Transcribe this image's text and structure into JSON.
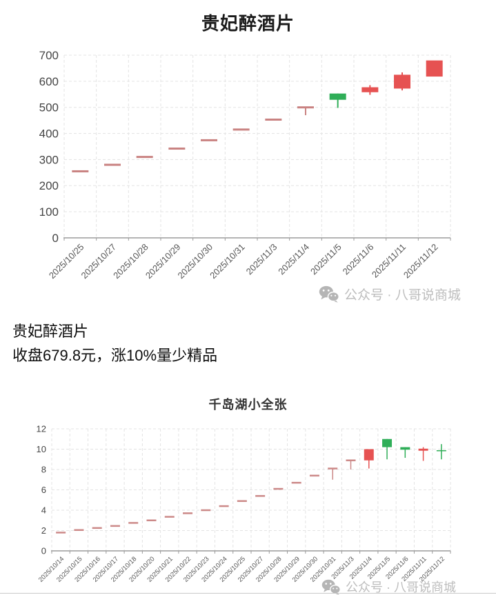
{
  "page": {
    "watermark_text": "公众号 · 八哥说商城"
  },
  "description": {
    "line1": "贵妃醉酒片",
    "line2": "收盘679.8元，涨10%量少精品"
  },
  "chart_data": [
    {
      "type": "candlestick",
      "title": "贵妃醉酒片",
      "categories": [
        "2025/10/25",
        "2025/10/27",
        "2025/10/28",
        "2025/10/29",
        "2025/10/30",
        "2025/10/31",
        "2025/11/3",
        "2025/11/4",
        "2025/11/5",
        "2025/11/6",
        "2025/11/11",
        "2025/11/12"
      ],
      "ohlc": [
        [
          255,
          255,
          255,
          255
        ],
        [
          280,
          280,
          280,
          280
        ],
        [
          310,
          310,
          310,
          310
        ],
        [
          342,
          342,
          342,
          342
        ],
        [
          374,
          374,
          374,
          374
        ],
        [
          415,
          415,
          415,
          415
        ],
        [
          453,
          453,
          453,
          453
        ],
        [
          500,
          500,
          470,
          500
        ],
        [
          553,
          553,
          498,
          529
        ],
        [
          558,
          585,
          548,
          577
        ],
        [
          572,
          634,
          565,
          625
        ],
        [
          618,
          679.8,
          618,
          679.8
        ]
      ],
      "ylim": [
        0,
        700
      ],
      "ytick_step": 100,
      "grid": true,
      "x_label_rotation": -45,
      "colors": {
        "up": "#e65252",
        "down": "#2fae58",
        "flat": "#c98281"
      }
    },
    {
      "type": "candlestick",
      "title": "千岛湖小全张",
      "categories": [
        "2025/10/14",
        "2025/10/15",
        "2025/10/16",
        "2025/10/17",
        "2025/10/18",
        "2025/10/20",
        "2025/10/21",
        "2025/10/22",
        "2025/10/23",
        "2025/10/24",
        "2025/10/25",
        "2025/10/27",
        "2025/10/28",
        "2025/10/29",
        "2025/10/30",
        "2025/10/31",
        "2025/11/3",
        "2025/11/4",
        "2025/11/5",
        "2025/11/6",
        "2025/11/11",
        "2025/11/12"
      ],
      "ohlc": [
        [
          1.8,
          1.8,
          1.8,
          1.8
        ],
        [
          2.05,
          2.05,
          2.05,
          2.05
        ],
        [
          2.25,
          2.25,
          2.25,
          2.25
        ],
        [
          2.45,
          2.45,
          2.45,
          2.45
        ],
        [
          2.75,
          2.75,
          2.75,
          2.75
        ],
        [
          3.0,
          3.0,
          3.0,
          3.0
        ],
        [
          3.35,
          3.35,
          3.35,
          3.35
        ],
        [
          3.7,
          3.7,
          3.7,
          3.7
        ],
        [
          4.0,
          4.0,
          4.0,
          4.0
        ],
        [
          4.4,
          4.4,
          4.4,
          4.4
        ],
        [
          4.9,
          4.9,
          4.9,
          4.9
        ],
        [
          5.4,
          5.4,
          5.4,
          5.4
        ],
        [
          6.1,
          6.1,
          6.1,
          6.1
        ],
        [
          6.7,
          6.7,
          6.7,
          6.7
        ],
        [
          7.4,
          7.4,
          7.4,
          7.4
        ],
        [
          8.1,
          8.1,
          7.0,
          8.1
        ],
        [
          8.9,
          8.9,
          8.0,
          8.9
        ],
        [
          8.9,
          10.0,
          8.1,
          10.0
        ],
        [
          11.0,
          11.0,
          9.0,
          10.2
        ],
        [
          10.2,
          10.2,
          9.15,
          9.95
        ],
        [
          9.85,
          10.2,
          8.85,
          10.05
        ],
        [
          9.9,
          10.5,
          9.0,
          9.8
        ]
      ],
      "ylim": [
        0,
        12
      ],
      "ytick_step": 2,
      "grid": true,
      "x_label_rotation": -45,
      "colors": {
        "up": "#e65252",
        "down": "#2fae58",
        "flat": "#cc8988"
      }
    }
  ]
}
